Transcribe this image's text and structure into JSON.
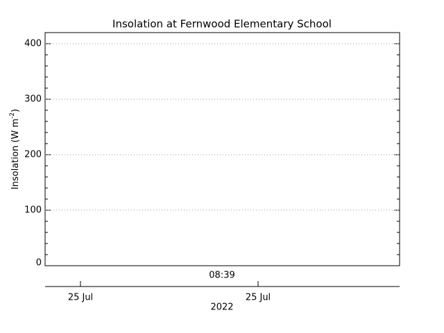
{
  "chart_data": {
    "type": "line",
    "title": "Insolation at Fernwood Elementary School",
    "ylabel": [
      "Insolation (W m",
      "-2",
      ")"
    ],
    "x": [],
    "series": [
      {
        "values": [],
        "color": "#000000"
      }
    ],
    "ylim": [
      0,
      420
    ],
    "yticks": [
      0,
      100,
      200,
      300,
      400
    ],
    "y_minor_step": 20,
    "grid": true,
    "zero_line": true,
    "annotation": "08:39",
    "date_axis": {
      "ticks": [
        "25 Jul",
        "25 Jul"
      ],
      "label": "2022"
    }
  }
}
